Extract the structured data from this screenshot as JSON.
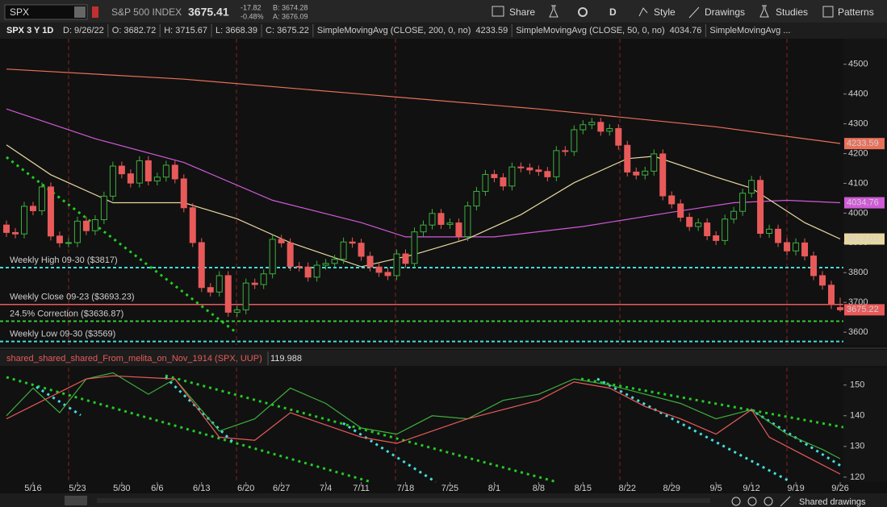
{
  "toolbar": {
    "symbol": "SPX",
    "name": "S&P 500 INDEX",
    "last": "3675.41",
    "change": "-17.82",
    "change_pct": "-0.48%",
    "bid": "B: 3674.28",
    "ask": "A: 3676.09",
    "buttons": [
      "Share",
      "D",
      "Style",
      "Drawings",
      "Studies",
      "Patterns"
    ]
  },
  "header": {
    "chart": "SPX 3 Y 1D",
    "items": [
      "D: 9/26/22",
      "O: 3682.72",
      "H: 3715.67",
      "L: 3668.39",
      "C: 3675.22"
    ]
  },
  "chart_data": {
    "type": "candlestick",
    "xlim": [
      0,
      94
    ],
    "xticks": [
      {
        "value": 3,
        "label": "5/16"
      },
      {
        "value": 8,
        "label": "5/23"
      },
      {
        "value": 13,
        "label": "5/30"
      },
      {
        "value": 17,
        "label": "6/6"
      },
      {
        "value": 22,
        "label": "6/13"
      },
      {
        "value": 27,
        "label": "6/20"
      },
      {
        "value": 31,
        "label": "6/27"
      },
      {
        "value": 36,
        "label": "7/4"
      },
      {
        "value": 40,
        "label": "7/11"
      },
      {
        "value": 45,
        "label": "7/18"
      },
      {
        "value": 50,
        "label": "7/25"
      },
      {
        "value": 55,
        "label": "8/1"
      },
      {
        "value": 60,
        "label": "8/8"
      },
      {
        "value": 65,
        "label": "8/15"
      },
      {
        "value": 70,
        "label": "8/22"
      },
      {
        "value": 75,
        "label": "8/29"
      },
      {
        "value": 80,
        "label": "9/5"
      },
      {
        "value": 84,
        "label": "9/12"
      },
      {
        "value": 89,
        "label": "9/19"
      },
      {
        "value": 94,
        "label": "9/26"
      }
    ],
    "ylim": [
      3557,
      4586
    ],
    "yticks": [
      3600,
      3700,
      3800,
      3900,
      4000,
      4100,
      4200,
      4300,
      4400,
      4500
    ],
    "up_color": "#3fae3f",
    "down_color": "#e85a5a",
    "candles": [
      [
        3960,
        3975,
        3920,
        3935
      ],
      [
        3935,
        3950,
        3915,
        3930
      ],
      [
        3930,
        4038,
        3915,
        4023
      ],
      [
        4023,
        4038,
        3993,
        4008
      ],
      [
        4008,
        4103,
        3993,
        4088
      ],
      [
        4088,
        4103,
        3908,
        3923
      ],
      [
        3923,
        3938,
        3885,
        3900
      ],
      [
        3900,
        3916,
        3885,
        3901
      ],
      [
        3901,
        3988,
        3886,
        3973
      ],
      [
        3973,
        3988,
        3926,
        3941
      ],
      [
        3941,
        3993,
        3926,
        3978
      ],
      [
        3978,
        4072,
        3963,
        4057
      ],
      [
        4057,
        4173,
        4042,
        4158
      ],
      [
        4158,
        4173,
        4117,
        4132
      ],
      [
        4132,
        4147,
        4086,
        4101
      ],
      [
        4101,
        4191,
        4086,
        4176
      ],
      [
        4176,
        4191,
        4093,
        4108
      ],
      [
        4108,
        4136,
        4093,
        4121
      ],
      [
        4121,
        4176,
        4106,
        4161
      ],
      [
        4161,
        4176,
        4100,
        4115
      ],
      [
        4115,
        4130,
        4003,
        4018
      ],
      [
        4018,
        4033,
        3886,
        3901
      ],
      [
        3901,
        3916,
        3735,
        3750
      ],
      [
        3750,
        3765,
        3720,
        3735
      ],
      [
        3735,
        3805,
        3720,
        3790
      ],
      [
        3790,
        3805,
        3652,
        3667
      ],
      [
        3667,
        3690,
        3652,
        3675
      ],
      [
        3675,
        3780,
        3660,
        3765
      ],
      [
        3765,
        3780,
        3745,
        3760
      ],
      [
        3760,
        3811,
        3745,
        3796
      ],
      [
        3796,
        3927,
        3781,
        3912
      ],
      [
        3912,
        3927,
        3885,
        3900
      ],
      [
        3900,
        3915,
        3806,
        3821
      ],
      [
        3821,
        3836,
        3804,
        3819
      ],
      [
        3819,
        3834,
        3770,
        3785
      ],
      [
        3785,
        3840,
        3770,
        3825
      ],
      [
        3825,
        3846,
        3810,
        3831
      ],
      [
        3831,
        3860,
        3816,
        3845
      ],
      [
        3845,
        3918,
        3830,
        3903
      ],
      [
        3903,
        3918,
        3884,
        3899
      ],
      [
        3899,
        3914,
        3840,
        3855
      ],
      [
        3855,
        3870,
        3804,
        3819
      ],
      [
        3819,
        3834,
        3786,
        3801
      ],
      [
        3801,
        3816,
        3775,
        3790
      ],
      [
        3790,
        3878,
        3775,
        3863
      ],
      [
        3863,
        3878,
        3816,
        3831
      ],
      [
        3831,
        3952,
        3816,
        3937
      ],
      [
        3937,
        3975,
        3922,
        3960
      ],
      [
        3960,
        4014,
        3945,
        3999
      ],
      [
        3999,
        4014,
        3947,
        3962
      ],
      [
        3962,
        3982,
        3947,
        3967
      ],
      [
        3967,
        3982,
        3906,
        3921
      ],
      [
        3921,
        4039,
        3906,
        4024
      ],
      [
        4024,
        4088,
        4009,
        4073
      ],
      [
        4073,
        4145,
        4058,
        4130
      ],
      [
        4130,
        4145,
        4104,
        4119
      ],
      [
        4119,
        4134,
        4076,
        4091
      ],
      [
        4091,
        4170,
        4076,
        4155
      ],
      [
        4155,
        4170,
        4137,
        4152
      ],
      [
        4152,
        4167,
        4130,
        4145
      ],
      [
        4145,
        4160,
        4125,
        4140
      ],
      [
        4140,
        4155,
        4107,
        4122
      ],
      [
        4122,
        4225,
        4107,
        4210
      ],
      [
        4210,
        4225,
        4192,
        4207
      ],
      [
        4207,
        4295,
        4192,
        4280
      ],
      [
        4280,
        4312,
        4265,
        4297
      ],
      [
        4297,
        4320,
        4282,
        4305
      ],
      [
        4305,
        4320,
        4260,
        4275
      ],
      [
        4275,
        4299,
        4260,
        4284
      ],
      [
        4284,
        4299,
        4213,
        4228
      ],
      [
        4228,
        4243,
        4123,
        4138
      ],
      [
        4138,
        4153,
        4113,
        4128
      ],
      [
        4128,
        4156,
        4113,
        4141
      ],
      [
        4141,
        4214,
        4126,
        4199
      ],
      [
        4199,
        4214,
        4043,
        4058
      ],
      [
        4058,
        4073,
        4016,
        4031
      ],
      [
        4031,
        4046,
        3971,
        3986
      ],
      [
        3986,
        4001,
        3940,
        3955
      ],
      [
        3955,
        3982,
        3940,
        3967
      ],
      [
        3967,
        3982,
        3909,
        3924
      ],
      [
        3924,
        3939,
        3893,
        3908
      ],
      [
        3908,
        3995,
        3893,
        3980
      ],
      [
        3980,
        4021,
        3965,
        4006
      ],
      [
        4006,
        4082,
        3991,
        4067
      ],
      [
        4067,
        4125,
        4052,
        4110
      ],
      [
        4110,
        4125,
        3917,
        3932
      ],
      [
        3932,
        3961,
        3917,
        3946
      ],
      [
        3946,
        3961,
        3886,
        3901
      ],
      [
        3901,
        3916,
        3858,
        3873
      ],
      [
        3873,
        3915,
        3858,
        3900
      ],
      [
        3900,
        3915,
        3841,
        3856
      ],
      [
        3856,
        3871,
        3775,
        3790
      ],
      [
        3790,
        3805,
        3743,
        3758
      ],
      [
        3758,
        3773,
        3678,
        3693
      ],
      [
        3682.72,
        3715.67,
        3668.39,
        3675.22
      ]
    ],
    "last_price": 3675.22,
    "studies": [
      {
        "name": "SimpleMovingAvg (CLOSE, 200, 0, no)",
        "value": 4233.59,
        "color": "#e8705a",
        "x": [
          0,
          20,
          40,
          60,
          70,
          80,
          90,
          94
        ],
        "values": [
          4484,
          4450,
          4400,
          4350,
          4320,
          4290,
          4250,
          4234
        ]
      },
      {
        "name": "SimpleMovingAvg (CLOSE, 50, 0, no)",
        "value": 4034.76,
        "color": "#d05ad8",
        "x": [
          0,
          10,
          20,
          30,
          40,
          45,
          55,
          65,
          75,
          82,
          88,
          94
        ],
        "values": [
          4350,
          4250,
          4170,
          4043,
          3968,
          3920,
          3920,
          3955,
          4003,
          4035,
          4043,
          4035
        ]
      },
      {
        "name": "SimpleMovingAvg ...",
        "value": 3913.02,
        "color": "#e8d8a0",
        "x": [
          0,
          5,
          12,
          20,
          26,
          32,
          40,
          46,
          52,
          58,
          64,
          70,
          73,
          80,
          84,
          90,
          94
        ],
        "values": [
          4229,
          4129,
          4035,
          4035,
          3981,
          3901,
          3820,
          3861,
          3914,
          3995,
          4102,
          4183,
          4191,
          4121,
          4084,
          3968,
          3913
        ]
      }
    ],
    "levels": [
      {
        "label": "Weekly High  09-30 ($3817)",
        "value": 3817,
        "color": "#44dddd",
        "style": "dash"
      },
      {
        "label": "Weekly Close 09-23 ($3693.23)",
        "value": 3693.23,
        "color": "#e85a5a",
        "style": "solid"
      },
      {
        "label": "24.5% Correction ($3636.87)",
        "value": 3636.87,
        "color": "#33cc33",
        "style": "dash"
      },
      {
        "label": "Weekly Low 09-30 ($3569)",
        "value": 3569,
        "color": "#44dddd",
        "style": "dash"
      }
    ]
  },
  "lower": {
    "title": "shared_shared_shared_From_melita_on_Nov_1914 (SPX, UUP)",
    "value": 119.988,
    "ylim": [
      118.4,
      155.7
    ],
    "yticks": [
      120,
      130,
      140,
      150
    ],
    "series": [
      {
        "color": "#3fae3f",
        "x": [
          0,
          3,
          6,
          9,
          12,
          16,
          19,
          24,
          28,
          32,
          36,
          40,
          44,
          48,
          52,
          56,
          60,
          64,
          68,
          72,
          76,
          80,
          84,
          88,
          92,
          94
        ],
        "values": [
          140,
          149,
          141,
          152,
          154,
          147,
          152,
          135,
          139,
          149,
          144,
          136,
          134,
          140,
          139,
          145,
          147,
          152,
          150,
          147,
          144,
          139,
          142,
          134,
          129,
          126
        ]
      },
      {
        "color": "#e85a5a",
        "x": [
          0,
          9,
          12,
          19,
          24,
          28,
          32,
          40,
          44,
          52,
          60,
          64,
          68,
          72,
          76,
          80,
          84,
          86,
          90,
          94
        ],
        "values": [
          139,
          152,
          153,
          152,
          133,
          132,
          141,
          133,
          131,
          139,
          145,
          151,
          149,
          143,
          139,
          134,
          142,
          133,
          127,
          121
        ]
      }
    ]
  },
  "footer": {
    "shared": "Shared drawings"
  }
}
